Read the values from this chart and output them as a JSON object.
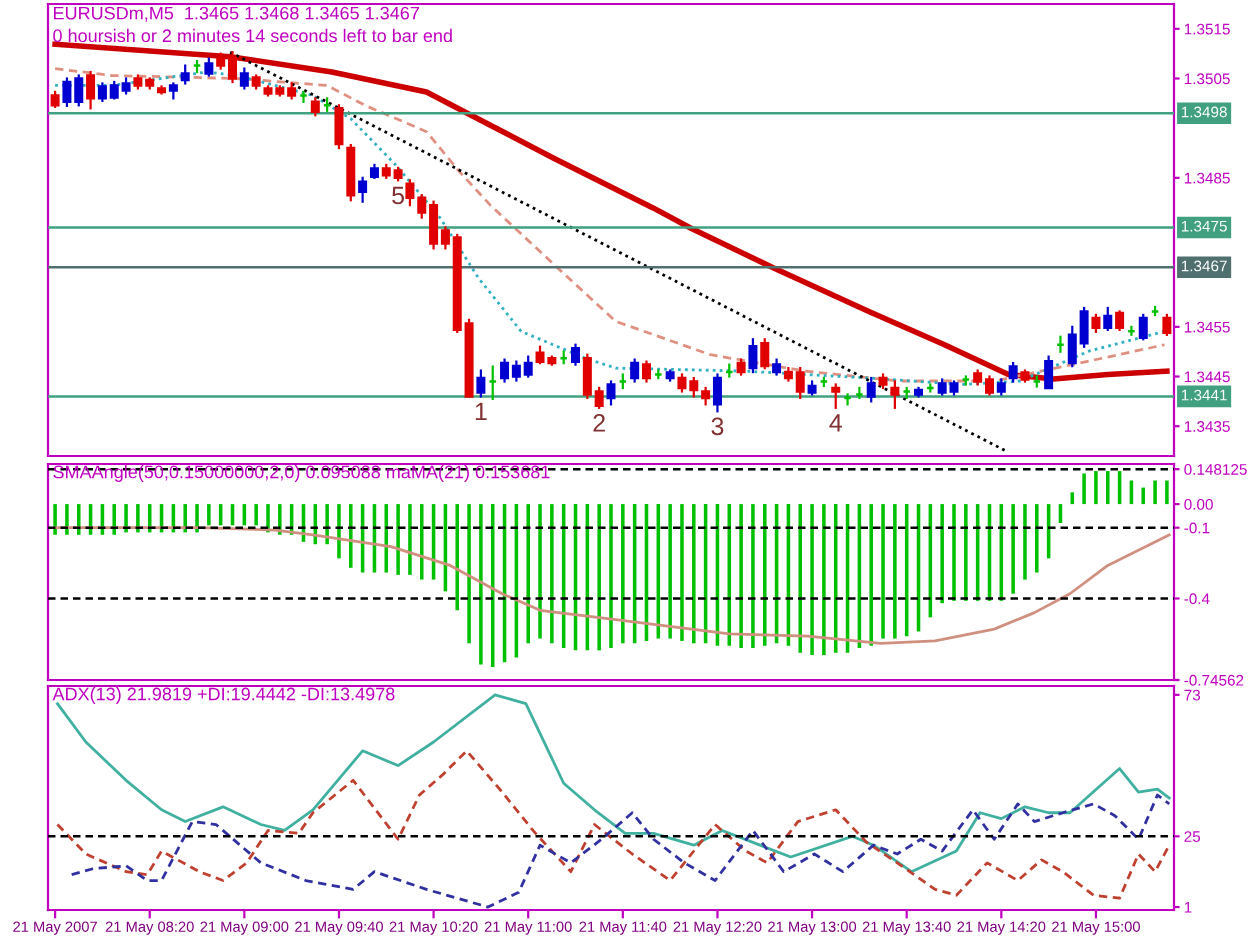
{
  "chart_data": [
    {
      "type": "candlestick",
      "title": "EURUSDm,M5  1.3465 1.3468 1.3465 1.3467",
      "subtitle": "0 hoursish or 2 minutes 14 seconds left to bar end",
      "x": [
        "2007-05-21T07:40",
        "2007-05-21T07:45",
        "2007-05-21T07:50",
        "2007-05-21T07:55",
        "2007-05-21T08:00",
        "2007-05-21T08:05",
        "2007-05-21T08:10",
        "2007-05-21T08:15",
        "2007-05-21T08:20",
        "2007-05-21T08:25",
        "2007-05-21T08:30",
        "2007-05-21T08:35",
        "2007-05-21T08:40",
        "2007-05-21T08:45",
        "2007-05-21T08:50",
        "2007-05-21T08:55",
        "2007-05-21T09:00",
        "2007-05-21T09:05",
        "2007-05-21T09:10",
        "2007-05-21T09:15",
        "2007-05-21T09:20",
        "2007-05-21T09:25",
        "2007-05-21T09:30",
        "2007-05-21T09:35",
        "2007-05-21T09:40",
        "2007-05-21T09:45",
        "2007-05-21T09:50",
        "2007-05-21T09:55",
        "2007-05-21T10:00",
        "2007-05-21T10:05",
        "2007-05-21T10:10",
        "2007-05-21T10:15",
        "2007-05-21T10:20",
        "2007-05-21T10:25",
        "2007-05-21T10:30",
        "2007-05-21T10:35",
        "2007-05-21T10:40",
        "2007-05-21T10:45",
        "2007-05-21T10:50",
        "2007-05-21T10:55",
        "2007-05-21T11:00",
        "2007-05-21T11:05",
        "2007-05-21T11:10",
        "2007-05-21T11:15",
        "2007-05-21T11:20",
        "2007-05-21T11:25",
        "2007-05-21T11:30",
        "2007-05-21T11:35",
        "2007-05-21T11:40",
        "2007-05-21T11:45",
        "2007-05-21T11:50",
        "2007-05-21T11:55",
        "2007-05-21T12:00",
        "2007-05-21T12:05",
        "2007-05-21T12:10",
        "2007-05-21T12:15",
        "2007-05-21T12:20",
        "2007-05-21T12:25",
        "2007-05-21T12:30",
        "2007-05-21T12:35",
        "2007-05-21T12:40",
        "2007-05-21T12:45",
        "2007-05-21T12:50",
        "2007-05-21T12:55",
        "2007-05-21T13:00",
        "2007-05-21T13:05",
        "2007-05-21T13:10",
        "2007-05-21T13:15",
        "2007-05-21T13:20",
        "2007-05-21T13:25",
        "2007-05-21T13:30",
        "2007-05-21T13:35",
        "2007-05-21T13:40",
        "2007-05-21T13:45",
        "2007-05-21T13:50",
        "2007-05-21T13:55",
        "2007-05-21T14:00",
        "2007-05-21T14:05",
        "2007-05-21T14:10",
        "2007-05-21T14:15",
        "2007-05-21T14:20",
        "2007-05-21T14:25",
        "2007-05-21T14:30",
        "2007-05-21T14:35",
        "2007-05-21T14:40",
        "2007-05-21T14:45",
        "2007-05-21T14:50",
        "2007-05-21T14:55",
        "2007-05-21T15:00",
        "2007-05-21T15:05",
        "2007-05-21T15:10",
        "2007-05-21T15:15",
        "2007-05-21T15:20",
        "2007-05-21T15:25",
        "2007-05-21T15:30"
      ],
      "ohlc": [
        [
          1.35016,
          1.35023,
          1.34993,
          1.34996
        ],
        [
          1.35003,
          1.3505,
          1.34995,
          1.35043
        ],
        [
          1.35003,
          1.35056,
          1.34996,
          1.3505
        ],
        [
          1.35056,
          1.35063,
          1.3499,
          1.3501
        ],
        [
          1.3501,
          1.3504,
          1.35005,
          1.35034
        ],
        [
          1.35012,
          1.35043,
          1.3501,
          1.35036
        ],
        [
          1.35026,
          1.3505,
          1.3502,
          1.3504
        ],
        [
          1.3505,
          1.35056,
          1.3503,
          1.35036
        ],
        [
          1.35047,
          1.3505,
          1.3503,
          1.35036
        ],
        [
          1.3503,
          1.35034,
          1.3502,
          1.35023
        ],
        [
          1.35026,
          1.3504,
          1.3501,
          1.35036
        ],
        [
          1.35047,
          1.35076,
          1.3504,
          1.3506
        ],
        [
          1.35076,
          1.35085,
          1.35063,
          1.35076
        ],
        [
          1.3506,
          1.3509,
          1.35056,
          1.3508
        ],
        [
          1.3509,
          1.351,
          1.3507,
          1.35076
        ],
        [
          1.35092,
          1.35103,
          1.35043,
          1.3505
        ],
        [
          1.35036,
          1.3507,
          1.3503,
          1.3506
        ],
        [
          1.35052,
          1.35056,
          1.3503,
          1.35036
        ],
        [
          1.3503,
          1.35034,
          1.35016,
          1.3502
        ],
        [
          1.3503,
          1.35034,
          1.35016,
          1.3502
        ],
        [
          1.3503,
          1.3504,
          1.3501,
          1.35016
        ],
        [
          1.35016,
          1.35023,
          1.35003,
          1.35016
        ],
        [
          1.35003,
          1.3501,
          1.34976,
          1.34983
        ],
        [
          1.34996,
          1.3501,
          1.34985,
          1.34996
        ],
        [
          1.3499,
          1.34996,
          1.3491,
          1.34918
        ],
        [
          1.3491,
          1.34916,
          1.34805,
          1.34815
        ],
        [
          1.34822,
          1.3485,
          1.34802,
          1.34842
        ],
        [
          1.34852,
          1.34876,
          1.3485,
          1.34869
        ],
        [
          1.34869,
          1.34876,
          1.3485,
          1.34855
        ],
        [
          1.34865,
          1.3487,
          1.34845,
          1.3485
        ],
        [
          1.34838,
          1.34845,
          1.34795,
          1.3481
        ],
        [
          1.3481,
          1.34815,
          1.3477,
          1.3478
        ],
        [
          1.34795,
          1.34802,
          1.34708,
          1.34718
        ],
        [
          1.34744,
          1.3475,
          1.34708,
          1.34718
        ],
        [
          1.3473,
          1.34735,
          1.3454,
          1.34544
        ],
        [
          1.34557,
          1.34564,
          1.3441,
          1.3441
        ],
        [
          1.34418,
          1.34462,
          1.3441,
          1.34447
        ],
        [
          1.3444,
          1.3447,
          1.34405,
          1.3444
        ],
        [
          1.34447,
          1.34484,
          1.3444,
          1.34477
        ],
        [
          1.3445,
          1.3448,
          1.34442,
          1.34471
        ],
        [
          1.34454,
          1.3449,
          1.3445,
          1.34477
        ],
        [
          1.34498,
          1.3451,
          1.34477,
          1.3448
        ],
        [
          1.34487,
          1.3449,
          1.34474,
          1.34477
        ],
        [
          1.34487,
          1.345,
          1.34477,
          1.34487
        ],
        [
          1.3448,
          1.34514,
          1.34474,
          1.34507
        ],
        [
          1.34487,
          1.34494,
          1.34407,
          1.34414
        ],
        [
          1.3442,
          1.34427,
          1.34387,
          1.34391
        ],
        [
          1.34407,
          1.3444,
          1.34394,
          1.34434
        ],
        [
          1.3444,
          1.34454,
          1.34427,
          1.3444
        ],
        [
          1.34447,
          1.34484,
          1.3444,
          1.34477
        ],
        [
          1.34474,
          1.3448,
          1.3444,
          1.34447
        ],
        [
          1.34454,
          1.34462,
          1.34447,
          1.34454
        ],
        [
          1.34447,
          1.34462,
          1.34442,
          1.34458
        ],
        [
          1.34447,
          1.34454,
          1.3442,
          1.34427
        ],
        [
          1.3444,
          1.34447,
          1.3441,
          1.34423
        ],
        [
          1.3442,
          1.34427,
          1.34394,
          1.34407
        ],
        [
          1.34394,
          1.34454,
          1.3438,
          1.34447
        ],
        [
          1.34459,
          1.34474,
          1.3445,
          1.34459
        ],
        [
          1.34477,
          1.34484,
          1.34454,
          1.34459
        ],
        [
          1.34467,
          1.34525,
          1.34459,
          1.34511
        ],
        [
          1.34517,
          1.34525,
          1.34467,
          1.34471
        ],
        [
          1.34459,
          1.34484,
          1.34454,
          1.34474
        ],
        [
          1.34459,
          1.34467,
          1.34442,
          1.34447
        ],
        [
          1.34458,
          1.34467,
          1.34407,
          1.3442
        ],
        [
          1.34418,
          1.3444,
          1.34414,
          1.34431
        ],
        [
          1.3444,
          1.34447,
          1.34431,
          1.3444
        ],
        [
          1.34427,
          1.34434,
          1.34387,
          1.3442
        ],
        [
          1.34407,
          1.34414,
          1.34394,
          1.34407
        ],
        [
          1.34414,
          1.34427,
          1.34407,
          1.34414
        ],
        [
          1.3441,
          1.34447,
          1.344,
          1.34436
        ],
        [
          1.34447,
          1.34454,
          1.34427,
          1.34434
        ],
        [
          1.34427,
          1.3444,
          1.34387,
          1.34414
        ],
        [
          1.3442,
          1.34427,
          1.34407,
          1.3442
        ],
        [
          1.34414,
          1.34427,
          1.3441,
          1.34423
        ],
        [
          1.34427,
          1.34434,
          1.3442,
          1.34427
        ],
        [
          1.34418,
          1.34444,
          1.34414,
          1.34436
        ],
        [
          1.3442,
          1.3444,
          1.34414,
          1.34436
        ],
        [
          1.34444,
          1.3445,
          1.34434,
          1.34444
        ],
        [
          1.34456,
          1.34462,
          1.34434,
          1.3444
        ],
        [
          1.34444,
          1.3445,
          1.34414,
          1.34418
        ],
        [
          1.3442,
          1.34444,
          1.34414,
          1.34436
        ],
        [
          1.34447,
          1.34477,
          1.3444,
          1.3447
        ],
        [
          1.34458,
          1.34462,
          1.3444,
          1.34444
        ],
        [
          1.3444,
          1.3445,
          1.3443,
          1.3444
        ],
        [
          1.34427,
          1.3449,
          1.34427,
          1.34481
        ],
        [
          1.34514,
          1.3453,
          1.345,
          1.34514
        ],
        [
          1.34477,
          1.3455,
          1.34471,
          1.34534
        ],
        [
          1.34517,
          1.34588,
          1.3451,
          1.34581
        ],
        [
          1.34568,
          1.34574,
          1.3454,
          1.34548
        ],
        [
          1.34548,
          1.34588,
          1.34544,
          1.34572
        ],
        [
          1.34578,
          1.34581,
          1.34544,
          1.34548
        ],
        [
          1.34541,
          1.3455,
          1.34534,
          1.34541
        ],
        [
          1.34528,
          1.34574,
          1.34525,
          1.34568
        ],
        [
          1.34581,
          1.3459,
          1.34574,
          1.34581
        ],
        [
          1.34568,
          1.34574,
          1.34534,
          1.34538
        ]
      ],
      "colors": [
        "#e00000",
        "#0000d0",
        "#0000d0",
        "#e00000",
        "#0000d0",
        "#0000d0",
        "#0000d0",
        "#e00000",
        "#e00000",
        "#e00000",
        "#0000d0",
        "#0000d0",
        "#00c000",
        "#0000d0",
        "#e00000",
        "#e00000",
        "#0000d0",
        "#e00000",
        "#e00000",
        "#e00000",
        "#e00000",
        "#00c000",
        "#e00000",
        "#00c000",
        "#e00000",
        "#e00000",
        "#0000d0",
        "#0000d0",
        "#e00000",
        "#e00000",
        "#e00000",
        "#e00000",
        "#e00000",
        "#e00000",
        "#e00000",
        "#e00000",
        "#0000d0",
        "#00c000",
        "#0000d0",
        "#0000d0",
        "#0000d0",
        "#e00000",
        "#e00000",
        "#00c000",
        "#0000d0",
        "#e00000",
        "#e00000",
        "#0000d0",
        "#00c000",
        "#0000d0",
        "#e00000",
        "#00c000",
        "#0000d0",
        "#e00000",
        "#e00000",
        "#e00000",
        "#0000d0",
        "#00c000",
        "#e00000",
        "#0000d0",
        "#e00000",
        "#0000d0",
        "#e00000",
        "#e00000",
        "#0000d0",
        "#00c000",
        "#e00000",
        "#00c000",
        "#00c000",
        "#0000d0",
        "#e00000",
        "#e00000",
        "#00c000",
        "#0000d0",
        "#00c000",
        "#0000d0",
        "#0000d0",
        "#00c000",
        "#e00000",
        "#e00000",
        "#0000d0",
        "#0000d0",
        "#e00000",
        "#00c000",
        "#0000d0",
        "#00c000",
        "#0000d0",
        "#0000d0",
        "#e00000",
        "#0000d0",
        "#e00000",
        "#00c000",
        "#0000d0",
        "#00c000",
        "#e00000"
      ],
      "series": [
        {
          "type": "line",
          "color": "#cc0000",
          "line_style": "solid",
          "x": [
            "2007-05-21T07:40",
            "2007-05-21T08:54",
            "2007-05-21T09:37",
            "2007-05-21T10:17",
            "2007-05-21T10:44",
            "2007-05-21T11:11",
            "2007-05-21T11:53",
            "2007-05-21T12:09",
            "2007-05-21T12:44",
            "2007-05-21T13:24",
            "2007-05-21T13:56",
            "2007-05-21T14:23",
            "2007-05-21T14:42",
            "2007-05-21T15:05",
            "2007-05-21T15:30"
          ],
          "values": [
            1.35119,
            1.35094,
            1.35063,
            1.35023,
            1.34956,
            1.34889,
            1.34789,
            1.34748,
            1.34668,
            1.34581,
            1.34514,
            1.34454,
            1.34445,
            1.34454,
            1.34461
          ]
        },
        {
          "type": "line",
          "color": "#e09080",
          "line_style": "dashed",
          "x": [
            "2007-05-21T07:40",
            "2007-05-21T08:04",
            "2007-05-21T08:57",
            "2007-05-21T09:35",
            "2007-05-21T09:51",
            "2007-05-21T10:17",
            "2007-05-21T10:31",
            "2007-05-21T10:44",
            "2007-05-21T11:11",
            "2007-05-21T11:37",
            "2007-05-21T12:17",
            "2007-05-21T12:57",
            "2007-05-21T13:37",
            "2007-05-21T14:17",
            "2007-05-21T14:57",
            "2007-05-21T15:29"
          ],
          "values": [
            1.3507,
            1.35056,
            1.3505,
            1.35036,
            1.34996,
            1.34943,
            1.34862,
            1.34795,
            1.34675,
            1.34561,
            1.34494,
            1.34461,
            1.34441,
            1.34441,
            1.34481,
            1.34514
          ]
        },
        {
          "type": "line",
          "color": "#30b0c0",
          "line_style": "dotted",
          "x": [
            "2007-05-21T07:40",
            "2007-05-21T08:04",
            "2007-05-21T08:44",
            "2007-05-21T08:57",
            "2007-05-21T09:29",
            "2007-05-21T09:45",
            "2007-05-21T10:04",
            "2007-05-21T10:23",
            "2007-05-21T10:39",
            "2007-05-21T10:57",
            "2007-05-21T11:24",
            "2007-05-21T11:37",
            "2007-05-21T12:31",
            "2007-05-21T13:24",
            "2007-05-21T14:04",
            "2007-05-21T14:28",
            "2007-05-21T14:57",
            "2007-05-21T15:29"
          ],
          "values": [
            1.35036,
            1.35036,
            1.35063,
            1.35056,
            1.35016,
            1.34969,
            1.34876,
            1.34768,
            1.34648,
            1.34541,
            1.34487,
            1.34467,
            1.34461,
            1.34447,
            1.34434,
            1.34441,
            1.34501,
            1.34541
          ]
        },
        {
          "type": "line",
          "color": "#000000",
          "line_style": "dotted",
          "x": [
            "2007-05-21T08:54",
            "2007-05-21T14:22"
          ],
          "values": [
            1.35103,
            1.343
          ]
        }
      ],
      "annotations": [
        {
          "text": "1",
          "x": "2007-05-21T10:40",
          "y": 1.3441
        },
        {
          "text": "2",
          "x": "2007-05-21T11:30",
          "y": 1.34387
        },
        {
          "text": "3",
          "x": "2007-05-21T12:20",
          "y": 1.3438
        },
        {
          "text": "4",
          "x": "2007-05-21T13:10",
          "y": 1.34387
        },
        {
          "text": "5",
          "x": "2007-05-21T10:05",
          "y": 1.34845
        }
      ],
      "ref_lines": [
        {
          "axis": "y",
          "value": 1.3498,
          "label": "1.3498",
          "color": "#40a080"
        },
        {
          "axis": "y",
          "value": 1.3475,
          "label": "1.3475",
          "color": "#40a080"
        },
        {
          "axis": "y",
          "value": 1.3467,
          "label": "1.3467",
          "color": "#507070"
        },
        {
          "axis": "y",
          "value": 1.3441,
          "label": "1.3441",
          "color": "#40a080"
        }
      ],
      "xlim": [
        "2007-05-21T07:37",
        "2007-05-21T15:33"
      ],
      "ylim": [
        1.3429,
        1.352
      ],
      "yticks": [
        1.3515,
        1.3505,
        1.3485,
        1.3455,
        1.3445,
        1.3435
      ],
      "tick_labels": "y"
    },
    {
      "type": "bar",
      "title": "SMAAngle(50,0.15000000,2,0) 0.095088 maMA(21) 0.153681",
      "color": "#00c000",
      "x": [
        "2007-05-21T07:40",
        "2007-05-21T07:45",
        "2007-05-21T07:50",
        "2007-05-21T07:55",
        "2007-05-21T08:00",
        "2007-05-21T08:05",
        "2007-05-21T08:10",
        "2007-05-21T08:15",
        "2007-05-21T08:20",
        "2007-05-21T08:25",
        "2007-05-21T08:30",
        "2007-05-21T08:35",
        "2007-05-21T08:40",
        "2007-05-21T08:45",
        "2007-05-21T08:50",
        "2007-05-21T08:55",
        "2007-05-21T09:00",
        "2007-05-21T09:05",
        "2007-05-21T09:10",
        "2007-05-21T09:15",
        "2007-05-21T09:20",
        "2007-05-21T09:25",
        "2007-05-21T09:30",
        "2007-05-21T09:35",
        "2007-05-21T09:40",
        "2007-05-21T09:45",
        "2007-05-21T09:50",
        "2007-05-21T09:55",
        "2007-05-21T10:00",
        "2007-05-21T10:05",
        "2007-05-21T10:10",
        "2007-05-21T10:15",
        "2007-05-21T10:20",
        "2007-05-21T10:25",
        "2007-05-21T10:30",
        "2007-05-21T10:35",
        "2007-05-21T10:40",
        "2007-05-21T10:45",
        "2007-05-21T10:50",
        "2007-05-21T10:55",
        "2007-05-21T11:00",
        "2007-05-21T11:05",
        "2007-05-21T11:10",
        "2007-05-21T11:15",
        "2007-05-21T11:20",
        "2007-05-21T11:25",
        "2007-05-21T11:30",
        "2007-05-21T11:35",
        "2007-05-21T11:40",
        "2007-05-21T11:45",
        "2007-05-21T11:50",
        "2007-05-21T11:55",
        "2007-05-21T12:00",
        "2007-05-21T12:05",
        "2007-05-21T12:10",
        "2007-05-21T12:15",
        "2007-05-21T12:20",
        "2007-05-21T12:25",
        "2007-05-21T12:30",
        "2007-05-21T12:35",
        "2007-05-21T12:40",
        "2007-05-21T12:45",
        "2007-05-21T12:50",
        "2007-05-21T12:55",
        "2007-05-21T13:00",
        "2007-05-21T13:05",
        "2007-05-21T13:10",
        "2007-05-21T13:15",
        "2007-05-21T13:20",
        "2007-05-21T13:25",
        "2007-05-21T13:30",
        "2007-05-21T13:35",
        "2007-05-21T13:40",
        "2007-05-21T13:45",
        "2007-05-21T13:50",
        "2007-05-21T13:55",
        "2007-05-21T14:00",
        "2007-05-21T14:05",
        "2007-05-21T14:10",
        "2007-05-21T14:15",
        "2007-05-21T14:20",
        "2007-05-21T14:25",
        "2007-05-21T14:30",
        "2007-05-21T14:35",
        "2007-05-21T14:40",
        "2007-05-21T14:45",
        "2007-05-21T14:50",
        "2007-05-21T14:55",
        "2007-05-21T15:00",
        "2007-05-21T15:05",
        "2007-05-21T15:10",
        "2007-05-21T15:15",
        "2007-05-21T15:20",
        "2007-05-21T15:25",
        "2007-05-21T15:30"
      ],
      "values": [
        -0.13,
        -0.13,
        -0.13,
        -0.13,
        -0.13,
        -0.13,
        -0.12,
        -0.12,
        -0.12,
        -0.12,
        -0.12,
        -0.12,
        -0.12,
        -0.09,
        -0.09,
        -0.09,
        -0.09,
        -0.09,
        -0.12,
        -0.13,
        -0.13,
        -0.16,
        -0.17,
        -0.17,
        -0.23,
        -0.27,
        -0.29,
        -0.29,
        -0.29,
        -0.3,
        -0.3,
        -0.32,
        -0.32,
        -0.37,
        -0.45,
        -0.59,
        -0.68,
        -0.69,
        -0.67,
        -0.65,
        -0.59,
        -0.57,
        -0.59,
        -0.61,
        -0.62,
        -0.62,
        -0.62,
        -0.61,
        -0.59,
        -0.59,
        -0.58,
        -0.57,
        -0.57,
        -0.58,
        -0.59,
        -0.59,
        -0.6,
        -0.6,
        -0.61,
        -0.61,
        -0.6,
        -0.59,
        -0.6,
        -0.63,
        -0.64,
        -0.64,
        -0.63,
        -0.63,
        -0.61,
        -0.6,
        -0.57,
        -0.57,
        -0.56,
        -0.54,
        -0.48,
        -0.42,
        -0.41,
        -0.41,
        -0.41,
        -0.41,
        -0.41,
        -0.38,
        -0.32,
        -0.29,
        -0.23,
        -0.08,
        0.05,
        0.13,
        0.14,
        0.14,
        0.14,
        0.1,
        0.07,
        0.1,
        0.1
      ],
      "series": [
        {
          "type": "line",
          "color": "#d09080",
          "line_style": "solid",
          "x": [
            "2007-05-21T07:40",
            "2007-05-21T08:41",
            "2007-05-21T09:13",
            "2007-05-21T09:29",
            "2007-05-21T10:02",
            "2007-05-21T10:27",
            "2007-05-21T10:49",
            "2007-05-21T11:05",
            "2007-05-21T11:37",
            "2007-05-21T12:25",
            "2007-05-21T12:58",
            "2007-05-21T13:29",
            "2007-05-21T13:52",
            "2007-05-21T14:17",
            "2007-05-21T14:34",
            "2007-05-21T14:49",
            "2007-05-21T15:05",
            "2007-05-21T15:31"
          ],
          "values": [
            -0.1,
            -0.1,
            -0.11,
            -0.13,
            -0.18,
            -0.26,
            -0.38,
            -0.45,
            -0.49,
            -0.55,
            -0.56,
            -0.59,
            -0.58,
            -0.53,
            -0.46,
            -0.38,
            -0.26,
            -0.13
          ]
        }
      ],
      "ref_lines": [
        {
          "axis": "y",
          "value": 0.148125,
          "color": "#000000",
          "line_style": "dashed"
        },
        {
          "axis": "y",
          "value": -0.1,
          "color": "#000000",
          "line_style": "dashed"
        },
        {
          "axis": "y",
          "value": -0.4,
          "color": "#000000",
          "line_style": "dashed"
        }
      ],
      "xlim": [
        "2007-05-21T07:37",
        "2007-05-21T15:33"
      ],
      "ylim": [
        -0.74562,
        0.17
      ],
      "yticks": [
        0.148125,
        {
          "value": 0,
          "label": "0.00"
        },
        -0.1,
        -0.4,
        -0.74562
      ],
      "tick_labels": "y"
    },
    {
      "type": "line",
      "title": "ADX(13) 21.9819 +DI:19.4442 -DI:13.4978",
      "series": [
        {
          "color": "#40b0a0",
          "line_style": "solid",
          "x": [
            "2007-05-21T07:41",
            "2007-05-21T07:53",
            "2007-05-21T08:10",
            "2007-05-21T08:25",
            "2007-05-21T08:35",
            "2007-05-21T08:51",
            "2007-05-21T09:07",
            "2007-05-21T09:17",
            "2007-05-21T09:29",
            "2007-05-21T09:50",
            "2007-05-21T10:05",
            "2007-05-21T10:20",
            "2007-05-21T10:46",
            "2007-05-21T10:59",
            "2007-05-21T11:15",
            "2007-05-21T11:28",
            "2007-05-21T11:41",
            "2007-05-21T11:53",
            "2007-05-21T12:10",
            "2007-05-21T12:22",
            "2007-05-21T12:38",
            "2007-05-21T12:51",
            "2007-05-21T13:17",
            "2007-05-21T13:26",
            "2007-05-21T13:42",
            "2007-05-21T14:01",
            "2007-05-21T14:11",
            "2007-05-21T14:20",
            "2007-05-21T14:30",
            "2007-05-21T14:40",
            "2007-05-21T14:49",
            "2007-05-21T15:10",
            "2007-05-21T15:18",
            "2007-05-21T15:26",
            "2007-05-21T15:31"
          ],
          "values": [
            70,
            57,
            44,
            34,
            30,
            35,
            29,
            27,
            34,
            54,
            49,
            57,
            73,
            70,
            43,
            34,
            26,
            26,
            22,
            27,
            22,
            18,
            25,
            22,
            13,
            20,
            33,
            31,
            35,
            33,
            33,
            48,
            40,
            41,
            38
          ]
        },
        {
          "color": "#c04030",
          "line_style": "dashed",
          "x": [
            "2007-05-21T07:41",
            "2007-05-21T07:53",
            "2007-05-21T08:10",
            "2007-05-21T08:19",
            "2007-05-21T08:25",
            "2007-05-21T08:41",
            "2007-05-21T08:51",
            "2007-05-21T09:01",
            "2007-05-21T09:10",
            "2007-05-21T09:23",
            "2007-05-21T09:29",
            "2007-05-21T09:46",
            "2007-05-21T10:05",
            "2007-05-21T10:14",
            "2007-05-21T10:24",
            "2007-05-21T10:34",
            "2007-05-21T10:49",
            "2007-05-21T11:02",
            "2007-05-21T11:18",
            "2007-05-21T11:28",
            "2007-05-21T11:44",
            "2007-05-21T12:00",
            "2007-05-21T12:19",
            "2007-05-21T12:32",
            "2007-05-21T12:41",
            "2007-05-21T12:54",
            "2007-05-21T13:10",
            "2007-05-21T13:23",
            "2007-05-21T13:36",
            "2007-05-21T13:52",
            "2007-05-21T14:01",
            "2007-05-21T14:14",
            "2007-05-21T14:27",
            "2007-05-21T14:37",
            "2007-05-21T14:46",
            "2007-05-21T14:59",
            "2007-05-21T15:10",
            "2007-05-21T15:18",
            "2007-05-21T15:25",
            "2007-05-21T15:31"
          ],
          "values": [
            29,
            19,
            13,
            12,
            20,
            13,
            10,
            16,
            27,
            26,
            33,
            44,
            24,
            39,
            46,
            54,
            40,
            27,
            13,
            29,
            19,
            10,
            29,
            20,
            16,
            30,
            34,
            23,
            16,
            7,
            5,
            16,
            10,
            17,
            13,
            5,
            4,
            19,
            13,
            22
          ]
        },
        {
          "color": "#3030a0",
          "line_style": "dashed",
          "x": [
            "2007-05-21T07:47",
            "2007-05-21T07:56",
            "2007-05-21T08:10",
            "2007-05-21T08:19",
            "2007-05-21T08:25",
            "2007-05-21T08:38",
            "2007-05-21T08:48",
            "2007-05-21T09:07",
            "2007-05-21T09:26",
            "2007-05-21T09:46",
            "2007-05-21T09:55",
            "2007-05-21T10:17",
            "2007-05-21T10:43",
            "2007-05-21T10:56",
            "2007-05-21T11:05",
            "2007-05-21T11:18",
            "2007-05-21T11:31",
            "2007-05-21T11:44",
            "2007-05-21T11:53",
            "2007-05-21T12:06",
            "2007-05-21T12:19",
            "2007-05-21T12:35",
            "2007-05-21T12:48",
            "2007-05-21T13:01",
            "2007-05-21T13:13",
            "2007-05-21T13:26",
            "2007-05-21T13:36",
            "2007-05-21T13:46",
            "2007-05-21T13:55",
            "2007-05-21T14:08",
            "2007-05-21T14:17",
            "2007-05-21T14:27",
            "2007-05-21T14:34",
            "2007-05-21T14:46",
            "2007-05-21T14:59",
            "2007-05-21T15:08",
            "2007-05-21T15:18",
            "2007-05-21T15:26",
            "2007-05-21T15:31"
          ],
          "values": [
            12,
            14,
            15,
            10,
            10,
            30,
            29,
            16,
            10,
            7,
            13,
            7,
            1,
            6,
            22,
            16,
            24,
            33,
            24,
            16,
            10,
            27,
            13,
            19,
            13,
            22,
            19,
            24,
            20,
            34,
            24,
            36,
            30,
            33,
            36,
            32,
            24,
            39,
            36
          ]
        }
      ],
      "ref_lines": [
        {
          "axis": "y",
          "value": 25,
          "color": "#000000",
          "line_style": "dashed"
        }
      ],
      "xlim": [
        "2007-05-21T07:37",
        "2007-05-21T15:33"
      ],
      "ylim": [
        0,
        76
      ],
      "yticks": [
        73,
        25,
        1
      ],
      "xticks": [
        {
          "value": "2007-05-21T07:40",
          "label": "21 May 2007"
        },
        {
          "value": "2007-05-21T08:20",
          "label": "21 May 08:20"
        },
        {
          "value": "2007-05-21T09:00",
          "label": "21 May 09:00"
        },
        {
          "value": "2007-05-21T09:40",
          "label": "21 May 09:40"
        },
        {
          "value": "2007-05-21T10:20",
          "label": "21 May 10:20"
        },
        {
          "value": "2007-05-21T11:00",
          "label": "21 May 11:00"
        },
        {
          "value": "2007-05-21T11:40",
          "label": "21 May 11:40"
        },
        {
          "value": "2007-05-21T12:20",
          "label": "21 May 12:20"
        },
        {
          "value": "2007-05-21T13:00",
          "label": "21 May 13:00"
        },
        {
          "value": "2007-05-21T13:40",
          "label": "21 May 13:40"
        },
        {
          "value": "2007-05-21T14:20",
          "label": "21 May 14:20"
        },
        {
          "value": "2007-05-21T15:00",
          "label": "21 May 15:00"
        }
      ]
    }
  ]
}
